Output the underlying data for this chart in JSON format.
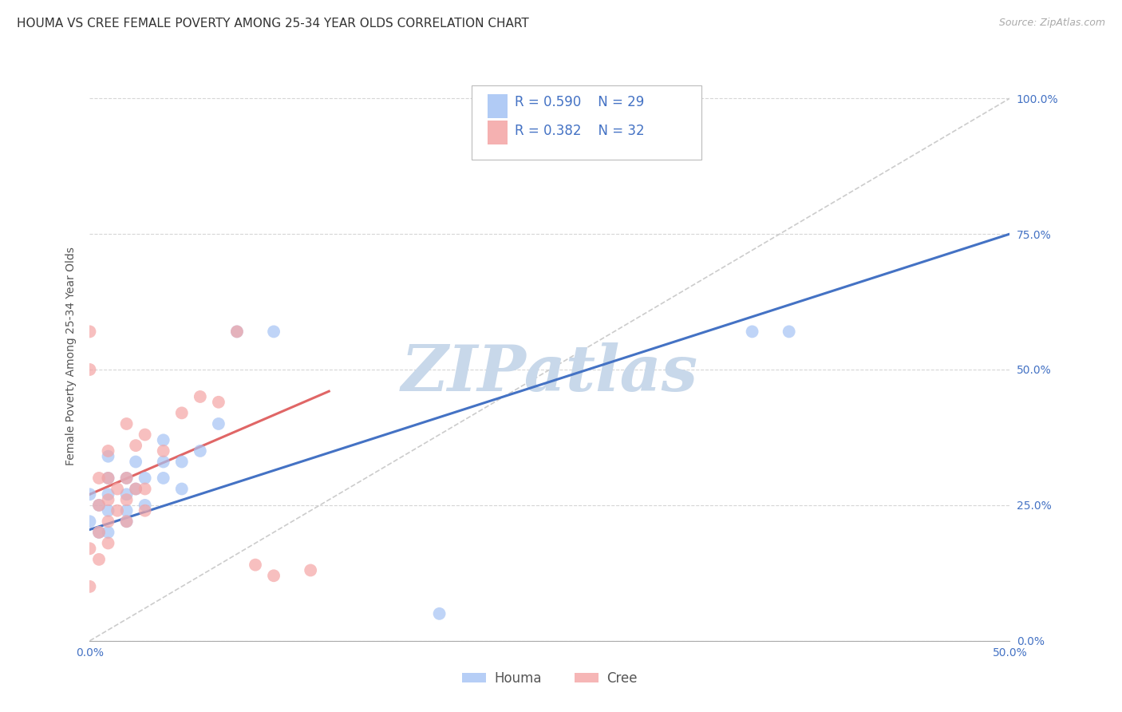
{
  "title": "HOUMA VS CREE FEMALE POVERTY AMONG 25-34 YEAR OLDS CORRELATION CHART",
  "source": "Source: ZipAtlas.com",
  "ylabel": "Female Poverty Among 25-34 Year Olds",
  "xlim": [
    0.0,
    0.5
  ],
  "ylim": [
    0.0,
    1.05
  ],
  "ytick_labels": [
    "0.0%",
    "25.0%",
    "50.0%",
    "75.0%",
    "100.0%"
  ],
  "ytick_values": [
    0.0,
    0.25,
    0.5,
    0.75,
    1.0
  ],
  "xtick_labels": [
    "0.0%",
    "",
    "",
    "",
    "",
    "50.0%"
  ],
  "xtick_values": [
    0.0,
    0.1,
    0.2,
    0.3,
    0.4,
    0.5
  ],
  "houma_color": "#a4c2f4",
  "cree_color": "#f4a4a4",
  "houma_line_color": "#4472c4",
  "cree_line_color": "#e06666",
  "diagonal_color": "#cccccc",
  "houma_R": 0.59,
  "houma_N": 29,
  "cree_R": 0.382,
  "cree_N": 32,
  "houma_x": [
    0.0,
    0.0,
    0.005,
    0.005,
    0.01,
    0.01,
    0.01,
    0.01,
    0.01,
    0.02,
    0.02,
    0.02,
    0.02,
    0.025,
    0.025,
    0.03,
    0.03,
    0.04,
    0.04,
    0.04,
    0.05,
    0.05,
    0.06,
    0.07,
    0.08,
    0.1,
    0.36,
    0.38,
    0.19
  ],
  "houma_y": [
    0.22,
    0.27,
    0.2,
    0.25,
    0.2,
    0.24,
    0.27,
    0.3,
    0.34,
    0.22,
    0.24,
    0.27,
    0.3,
    0.28,
    0.33,
    0.25,
    0.3,
    0.3,
    0.33,
    0.37,
    0.28,
    0.33,
    0.35,
    0.4,
    0.57,
    0.57,
    0.57,
    0.57,
    0.05
  ],
  "cree_x": [
    0.0,
    0.0,
    0.0,
    0.0,
    0.005,
    0.005,
    0.005,
    0.005,
    0.01,
    0.01,
    0.01,
    0.01,
    0.01,
    0.015,
    0.015,
    0.02,
    0.02,
    0.02,
    0.02,
    0.025,
    0.025,
    0.03,
    0.03,
    0.03,
    0.04,
    0.05,
    0.06,
    0.07,
    0.08,
    0.09,
    0.1,
    0.12
  ],
  "cree_y": [
    0.1,
    0.17,
    0.5,
    0.57,
    0.15,
    0.2,
    0.25,
    0.3,
    0.18,
    0.22,
    0.26,
    0.3,
    0.35,
    0.24,
    0.28,
    0.22,
    0.26,
    0.3,
    0.4,
    0.28,
    0.36,
    0.24,
    0.28,
    0.38,
    0.35,
    0.42,
    0.45,
    0.44,
    0.57,
    0.14,
    0.12,
    0.13
  ],
  "background_color": "#ffffff",
  "watermark_text": "ZIPatlas",
  "watermark_color": "#c8d8ea",
  "legend_label_houma": "Houma",
  "legend_label_cree": "Cree",
  "title_fontsize": 11,
  "axis_label_fontsize": 10,
  "tick_fontsize": 10,
  "marker_size": 130,
  "houma_trend_x": [
    0.0,
    0.5
  ],
  "houma_trend_y": [
    0.205,
    0.75
  ],
  "cree_trend_x": [
    0.0,
    0.13
  ],
  "cree_trend_y": [
    0.27,
    0.46
  ]
}
